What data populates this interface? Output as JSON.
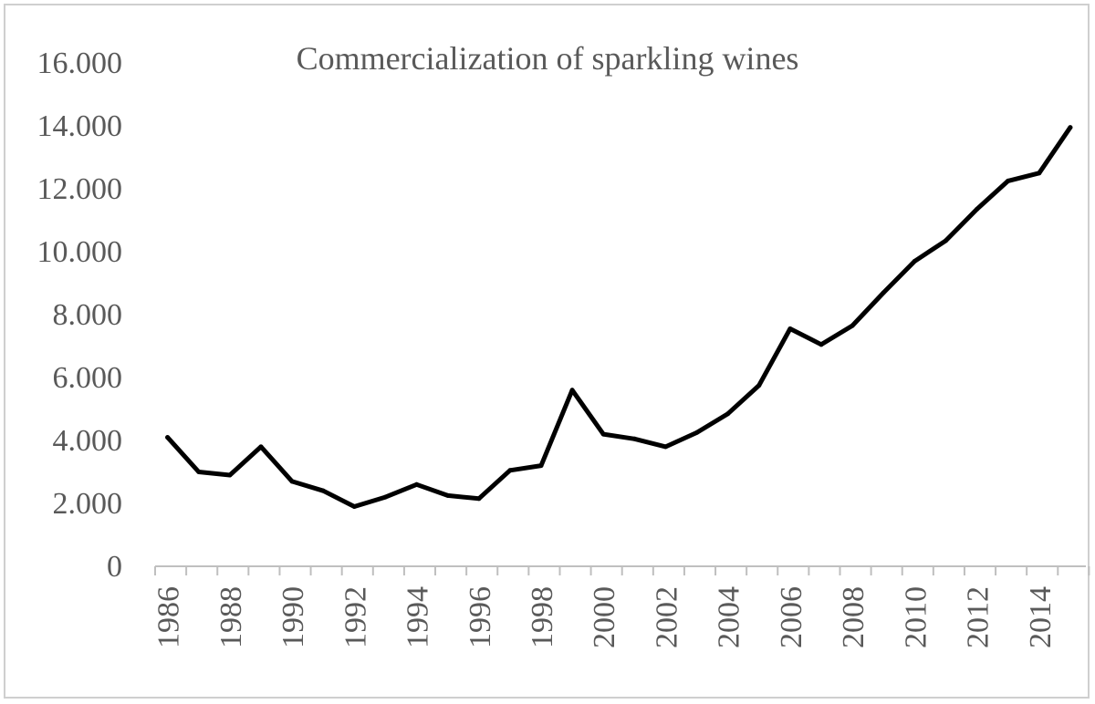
{
  "chart_data": {
    "type": "line",
    "title": "Commercialization of sparkling wines",
    "xlabel": "",
    "ylabel": "",
    "ylim": [
      0,
      16000
    ],
    "yticks": [
      0,
      2000,
      4000,
      6000,
      8000,
      10000,
      12000,
      14000,
      16000
    ],
    "ytick_labels": [
      "0",
      "2.000",
      "4.000",
      "6.000",
      "8.000",
      "10.000",
      "12.000",
      "14.000",
      "16.000"
    ],
    "xtick_labels": [
      "1986",
      "1988",
      "1990",
      "1992",
      "1994",
      "1996",
      "1998",
      "2000",
      "2002",
      "2004",
      "2006",
      "2008",
      "2010",
      "2012",
      "2014"
    ],
    "grid": false,
    "legend": "none",
    "series_color": "#000000",
    "x": [
      1986,
      1987,
      1988,
      1989,
      1990,
      1991,
      1992,
      1993,
      1994,
      1995,
      1996,
      1997,
      1998,
      1999,
      2000,
      2001,
      2002,
      2003,
      2004,
      2005,
      2006,
      2007,
      2008,
      2009,
      2010,
      2011,
      2012,
      2013,
      2014,
      2015
    ],
    "series": [
      {
        "values": [
          4100,
          3000,
          2900,
          3800,
          2700,
          2400,
          1900,
          2200,
          2600,
          2250,
          2150,
          3050,
          3200,
          5600,
          4200,
          4050,
          3800,
          4250,
          4850,
          5750,
          7550,
          7050,
          7650,
          8700,
          9700,
          10350,
          11350,
          12250,
          12500,
          13950
        ]
      }
    ]
  }
}
